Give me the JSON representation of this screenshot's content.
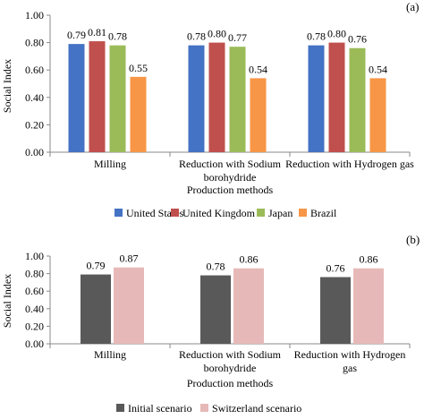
{
  "chart_data": [
    {
      "panel_label": "(a)",
      "type": "bar",
      "categories": [
        "Milling",
        "Reduction with Sodium borohydride",
        "Reduction with Hydrogen gas"
      ],
      "category_lines": [
        [
          "Milling"
        ],
        [
          "Reduction with Sodium",
          "borohydride"
        ],
        [
          "Reduction with Hydrogen gas"
        ]
      ],
      "series": [
        {
          "name": "United States",
          "values": [
            0.79,
            0.78,
            0.78
          ],
          "labels": [
            "0.79",
            "0.78",
            "0.78"
          ],
          "color": "#4472C4"
        },
        {
          "name": "United Kingdom",
          "values": [
            0.81,
            0.8,
            0.8
          ],
          "labels": [
            "0.81",
            "0.80",
            "0.80"
          ],
          "color": "#C0504D"
        },
        {
          "name": "Japan",
          "values": [
            0.78,
            0.77,
            0.76
          ],
          "labels": [
            "0.78",
            "0.77",
            "0.76"
          ],
          "color": "#9BBB59"
        },
        {
          "name": "Brazil",
          "values": [
            0.55,
            0.54,
            0.54
          ],
          "labels": [
            "0.55",
            "0.54",
            "0.54"
          ],
          "color": "#F79646"
        }
      ],
      "xlabel": "Production methods",
      "ylabel": "Social Index",
      "ylim": [
        0,
        1
      ],
      "yticks": [
        "0.00",
        "0.20",
        "0.40",
        "0.60",
        "0.80",
        "1.00"
      ],
      "legend_position": "bottom"
    },
    {
      "panel_label": "(b)",
      "type": "bar",
      "categories": [
        "Milling",
        "Reduction with Sodium borohydride",
        "Reduction with Hydrogen gas"
      ],
      "category_lines": [
        [
          "Milling"
        ],
        [
          "Reduction with Sodium",
          "borohydride"
        ],
        [
          "Reduction with Hydrogen",
          "gas"
        ]
      ],
      "series": [
        {
          "name": "Initial scenario",
          "values": [
            0.79,
            0.78,
            0.76
          ],
          "labels": [
            "0.79",
            "0.78",
            "0.76"
          ],
          "color": "#595959"
        },
        {
          "name": "Switzerland scenario",
          "values": [
            0.87,
            0.86,
            0.86
          ],
          "labels": [
            "0.87",
            "0.86",
            "0.86"
          ],
          "color": "#E6B9B8"
        }
      ],
      "xlabel": "Production methods",
      "ylabel": "Social Index",
      "ylim": [
        0,
        1
      ],
      "yticks": [
        "0.00",
        "0.20",
        "0.40",
        "0.60",
        "0.80",
        "1.00"
      ],
      "legend_position": "bottom"
    }
  ]
}
